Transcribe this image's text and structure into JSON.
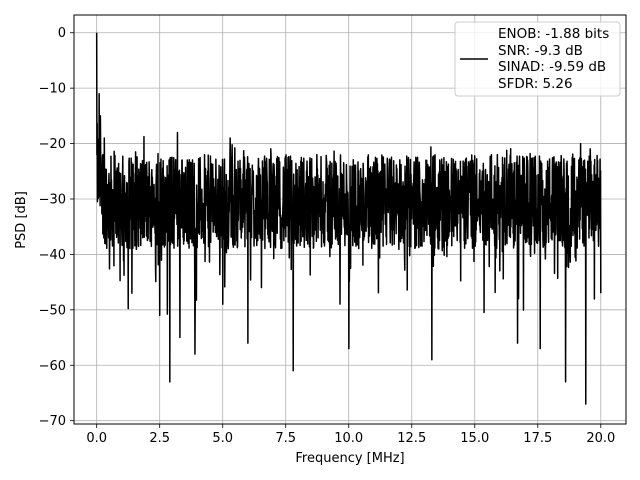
{
  "chart_data": {
    "type": "line",
    "title": "",
    "xlabel": "Frequency [MHz]",
    "ylabel": "PSD [dB]",
    "xlim": [
      -0.9,
      21.0
    ],
    "ylim": [
      -70.6,
      3.2
    ],
    "xticks": [
      0.0,
      2.5,
      5.0,
      7.5,
      10.0,
      12.5,
      15.0,
      17.5,
      20.0
    ],
    "xtick_labels": [
      "0.0",
      "2.5",
      "5.0",
      "7.5",
      "10.0",
      "12.5",
      "15.0",
      "17.5",
      "20.0"
    ],
    "yticks": [
      0,
      -10,
      -20,
      -30,
      -40,
      -50,
      -60,
      -70
    ],
    "ytick_labels": [
      "0",
      "−10",
      "−20",
      "−30",
      "−40",
      "−50",
      "−60",
      "−70"
    ],
    "grid": true,
    "legend_position": "top-right",
    "series": [
      {
        "name": "ENOB: -1.88 bits\nSNR: -9.3 dB\nSINAD: -9.59 dB\nSFDR: 5.26",
        "color": "#000000",
        "x_range": [
          0.0,
          20.0
        ],
        "points": 2048,
        "band_floor": -39,
        "band_ceiling": -22,
        "peak": [
          0.0,
          0.0
        ],
        "spur_points": [
          [
            0.05,
            -21
          ],
          [
            0.1,
            -11
          ],
          [
            0.15,
            -15
          ],
          [
            0.2,
            -26
          ],
          [
            0.25,
            -22
          ],
          [
            0.3,
            -19
          ],
          [
            0.32,
            -38
          ],
          [
            0.7,
            -25
          ],
          [
            1.0,
            -36
          ],
          [
            1.4,
            -47
          ],
          [
            2.5,
            -51
          ],
          [
            2.9,
            -63
          ],
          [
            3.3,
            -55
          ],
          [
            3.9,
            -58
          ],
          [
            5.0,
            -49
          ],
          [
            6.0,
            -56
          ],
          [
            7.8,
            -61
          ],
          [
            10.0,
            -57
          ],
          [
            13.3,
            -59
          ],
          [
            16.7,
            -56
          ],
          [
            17.6,
            -57
          ],
          [
            18.6,
            -63
          ],
          [
            19.4,
            -67
          ],
          [
            3.2,
            -18
          ],
          [
            5.3,
            -19
          ],
          [
            15.9,
            -22
          ],
          [
            19.2,
            -20
          ],
          [
            20.0,
            -47
          ]
        ]
      }
    ],
    "legend_lines": [
      "ENOB: -1.88 bits",
      "SNR: -9.3 dB",
      "SINAD: -9.59 dB",
      "SFDR: 5.26"
    ]
  }
}
